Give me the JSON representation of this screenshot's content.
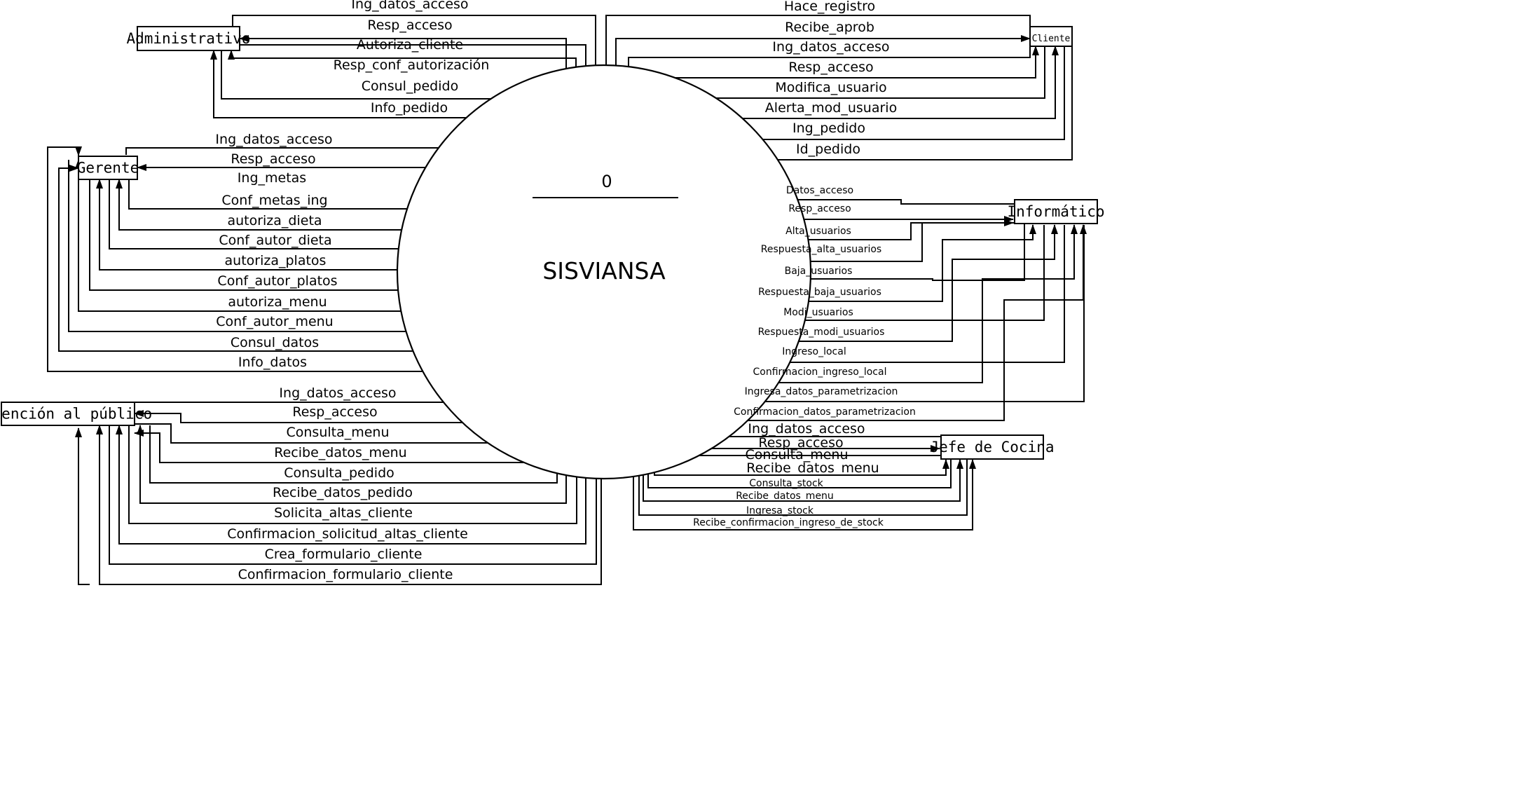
{
  "process": {
    "number": "0",
    "name": "SISVIANSA"
  },
  "entities": {
    "administrativo": "Administrativo",
    "cliente": "Cliente",
    "gerente": "Gerente",
    "informatico": "Informático",
    "atencion": "Atención al público",
    "jefe_cocina": "Jefe de Cocina"
  },
  "flows": {
    "administrativo": [
      "Ing_datos_acceso",
      "Resp_acceso",
      "Autoriza_cliente",
      "Resp_conf_autorización",
      "Consul_pedido",
      "Info_pedido"
    ],
    "cliente": [
      "Hace_registro",
      "Recibe_aprob",
      "Ing_datos_acceso",
      "Resp_acceso",
      "Modifica_usuario",
      "Alerta_mod_usuario",
      "Ing_pedido",
      "Id_pedido"
    ],
    "gerente": [
      "Ing_datos_acceso",
      "Resp_acceso",
      "Ing_metas",
      "Conf_metas_ing",
      "autoriza_dieta",
      "Conf_autor_dieta",
      "autoriza_platos",
      "Conf_autor_platos",
      "autoriza_menu",
      "Conf_autor_menu",
      "Consul_datos",
      "Info_datos"
    ],
    "informatico": [
      "Datos_acceso",
      "Resp_acceso",
      "Alta_usuarios",
      "Respuesta_alta_usuarios",
      "Baja_usuarios",
      "Respuesta_baja_usuarios",
      "Modi_usuarios",
      "Respuesta_modi_usuarios",
      "Ingreso_local",
      "Confirmacion_ingreso_local",
      "Ingresa_datos_parametrizacion",
      "Confirmacion_datos_parametrizacion"
    ],
    "atencion": [
      "Ing_datos_acceso",
      "Resp_acceso",
      "Consulta_menu",
      "Recibe_datos_menu",
      "Consulta_pedido",
      "Recibe_datos_pedido",
      "Solicita_altas_cliente",
      "Confirmacion_solicitud_altas_cliente",
      "Crea_formulario_cliente",
      "Confirmacion_formulario_cliente"
    ],
    "jefe_cocina": [
      "Ing_datos_acceso",
      "Resp_acceso",
      "Consulta_menu",
      "Recibe_datos_menu",
      "Consulta_stock",
      "Recibe_datos_menu",
      "Ingresa_stock",
      "Recibe_confirmacion_ingreso_de_stock"
    ]
  }
}
